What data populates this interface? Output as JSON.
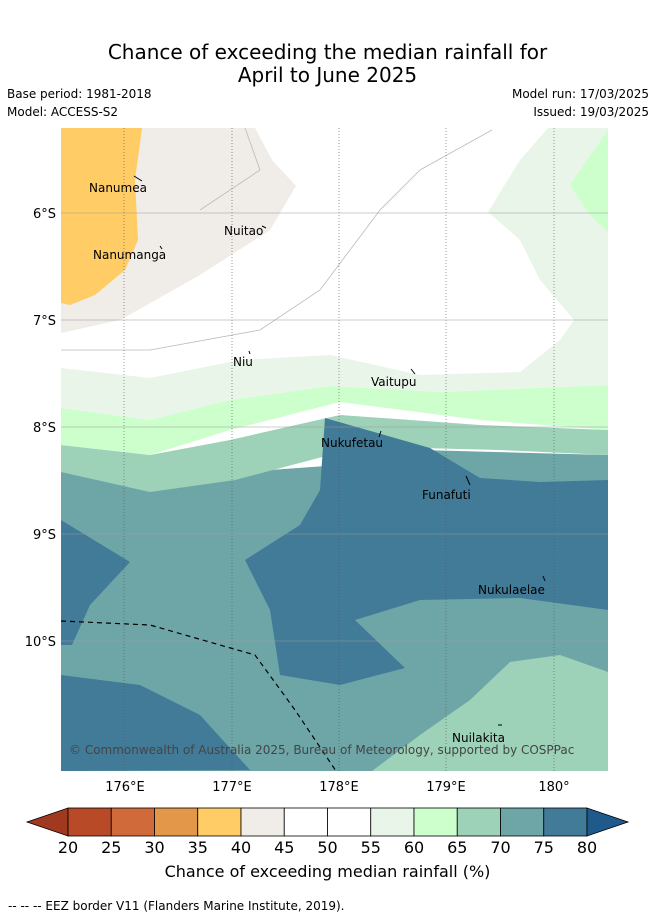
{
  "title": {
    "line1": "Chance of exceeding the median rainfall for",
    "line2": "April to June 2025"
  },
  "meta": {
    "base_period": "Base period: 1981-2018",
    "model": "Model: ACCESS-S2",
    "model_run": "Model run: 17/03/2025",
    "issued": "Issued: 19/03/2025"
  },
  "map": {
    "lat_labels": [
      "6°S",
      "7°S",
      "8°S",
      "9°S",
      "10°S"
    ],
    "lon_labels": [
      "176°E",
      "177°E",
      "178°E",
      "179°E",
      "180°"
    ],
    "places": [
      "Nanumea",
      "Nuitao",
      "Nanumanga",
      "Niu",
      "Vaitupu",
      "Nukufetau",
      "Funafuti",
      "Nukulaelae",
      "Nuilakita"
    ],
    "copyright": "© Commonwealth of Australia 2025, Bureau of Meteorology, supported by COSPPac"
  },
  "colorbar": {
    "ticks": [
      "20",
      "25",
      "30",
      "35",
      "40",
      "45",
      "50",
      "55",
      "60",
      "65",
      "70",
      "75",
      "80"
    ],
    "colors": [
      "#a0391f",
      "#b84a27",
      "#d06a3a",
      "#e39748",
      "#ffcc66",
      "#f0ece7",
      "#ffffff",
      "#ffffff",
      "#e9f5e9",
      "#ccffcc",
      "#9dd2b9",
      "#6ea6a8",
      "#427b98",
      "#1f5a8c"
    ],
    "label": "Chance of exceeding median rainfall (%)"
  },
  "footer": "--  --  -- EEZ border V11 (Flanders Marine Institute, 2019)."
}
